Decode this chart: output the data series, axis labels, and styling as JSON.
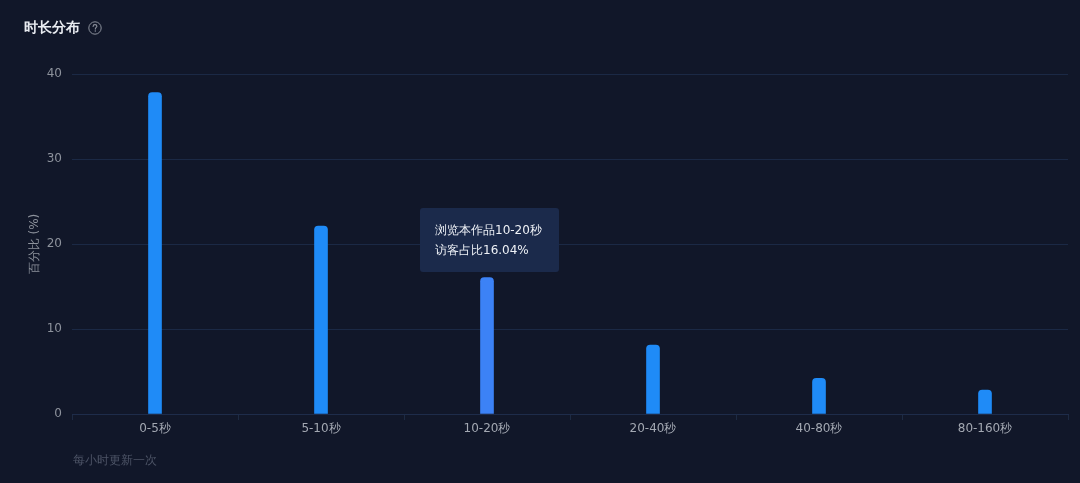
{
  "chart_data": {
    "type": "bar",
    "title": "时长分布",
    "ylabel": "百分比 (%)",
    "categories": [
      "0-5秒",
      "5-10秒",
      "10-20秒",
      "20-40秒",
      "40-80秒",
      "80-160秒"
    ],
    "values": [
      37.8,
      22.1,
      16.04,
      8.1,
      4.2,
      2.8
    ],
    "colors": [
      "#1f8bf7",
      "#1f8bf7",
      "#3c82f6",
      "#1f8bf7",
      "#1f8bf7",
      "#1f8bf7"
    ],
    "ylim": [
      0,
      40
    ],
    "yticks": [
      0,
      10,
      20,
      30,
      40
    ],
    "grid": "y",
    "annotations": [
      "浏览本作品10-20秒",
      "访客占比16.04%",
      "每小时更新一次"
    ]
  }
}
